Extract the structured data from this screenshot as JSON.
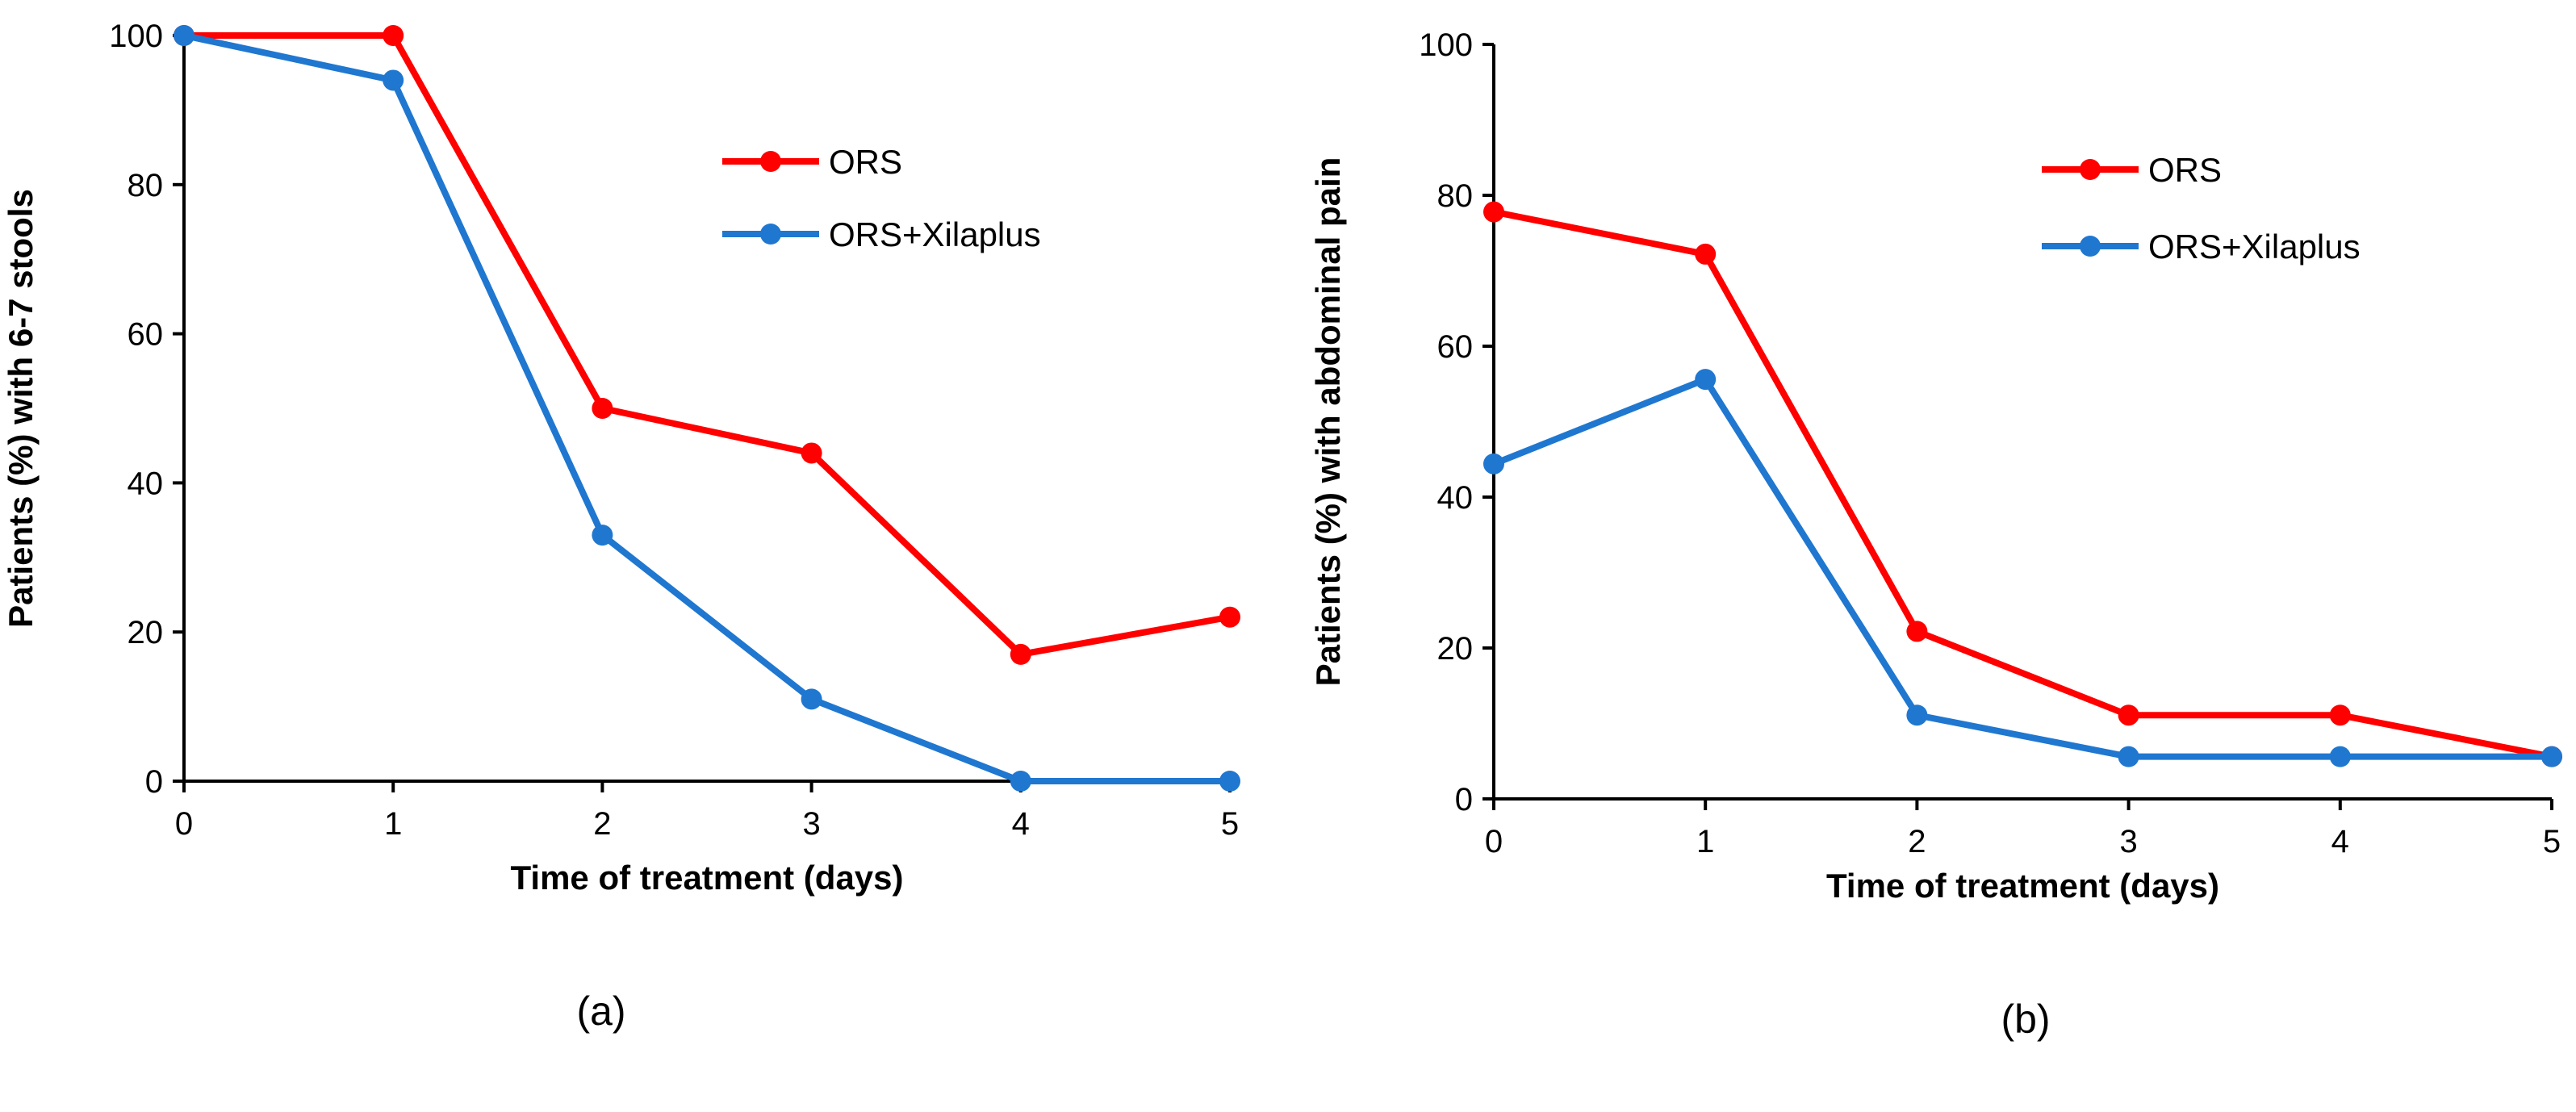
{
  "colors": {
    "ors": "#ff0000",
    "xilaplus": "#1f77d0",
    "axis": "#000000"
  },
  "chart_data": [
    {
      "type": "line",
      "panel": "a",
      "caption": "(a)",
      "title": "",
      "xlabel": "Time of treatment (days)",
      "ylabel": "Patients (%) with 6-7 stools",
      "x": [
        0,
        1,
        2,
        3,
        4,
        5
      ],
      "xlim": [
        0,
        5
      ],
      "ylim": [
        0,
        100
      ],
      "yticks": [
        0,
        20,
        40,
        60,
        80,
        100
      ],
      "legend_position": "top-right",
      "series": [
        {
          "name": "ORS",
          "color": "#ff0000",
          "values": [
            100,
            100,
            50,
            44,
            17,
            22
          ]
        },
        {
          "name": "ORS+Xilaplus",
          "color": "#1f77d0",
          "values": [
            100,
            94,
            33,
            11,
            0,
            0
          ]
        }
      ]
    },
    {
      "type": "line",
      "panel": "b",
      "caption": "(b)",
      "title": "",
      "xlabel": "Time of treatment (days)",
      "ylabel": "Patients (%) with abdominal pain",
      "x": [
        0,
        1,
        2,
        3,
        4,
        5
      ],
      "xlim": [
        0,
        5
      ],
      "ylim": [
        0,
        100
      ],
      "yticks": [
        0,
        20,
        40,
        60,
        80,
        100
      ],
      "legend_position": "top-right",
      "series": [
        {
          "name": "ORS",
          "color": "#ff0000",
          "values": [
            77.8,
            72.2,
            22.2,
            11.1,
            11.1,
            5.6
          ]
        },
        {
          "name": "ORS+Xilaplus",
          "color": "#1f77d0",
          "values": [
            44.4,
            55.6,
            11.1,
            5.6,
            5.6,
            5.6
          ]
        }
      ]
    }
  ]
}
